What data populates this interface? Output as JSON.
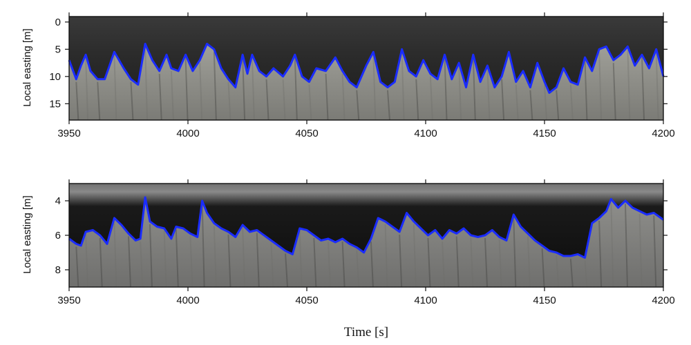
{
  "chart_data": [
    {
      "type": "line",
      "title": "",
      "ylabel": "Local easting [m]",
      "xlabel": "",
      "xlim": [
        3950,
        4200
      ],
      "ylim": [
        18,
        -1
      ],
      "y_inverted": true,
      "xticks": [
        3950,
        4000,
        4050,
        4100,
        4150,
        4200
      ],
      "yticks": [
        0,
        5,
        10,
        15
      ],
      "background": "grayscale lidar/camera timestack image",
      "line_color": "#1a2cff",
      "series": [
        {
          "x": [
            3950,
            3953,
            3955,
            3957,
            3959,
            3962,
            3965,
            3969,
            3973,
            3976,
            3979,
            3982,
            3985,
            3988,
            3991,
            3993,
            3996,
            3999,
            4002,
            4005,
            4008,
            4011,
            4014,
            4017,
            4020,
            4023,
            4025,
            4027,
            4030,
            4033,
            4036,
            4040,
            4043,
            4045,
            4048,
            4051,
            4054,
            4058,
            4062,
            4065,
            4068,
            4071,
            4075,
            4078,
            4081,
            4084,
            4087,
            4090,
            4093,
            4096,
            4099,
            4102,
            4105,
            4108,
            4111,
            4114,
            4117,
            4120,
            4123,
            4126,
            4129,
            4132,
            4135,
            4138,
            4141,
            4144,
            4147,
            4150,
            4152,
            4155,
            4158,
            4161,
            4164,
            4167,
            4170,
            4173,
            4176,
            4179,
            4182,
            4185,
            4188,
            4191,
            4194,
            4197,
            4200
          ],
          "y": [
            7,
            10.5,
            8,
            6,
            9,
            10.5,
            10.5,
            5.5,
            8.5,
            10.5,
            11.5,
            4,
            7,
            9,
            6,
            8.5,
            9,
            6,
            9,
            7,
            4,
            5,
            8.5,
            10.5,
            12,
            6,
            9.5,
            6,
            9,
            10,
            8.5,
            10,
            8,
            6,
            10,
            11,
            8.5,
            9,
            6.5,
            9,
            11,
            12,
            8,
            5.5,
            11,
            12,
            11,
            5,
            9,
            10,
            7,
            9.5,
            10.5,
            6,
            10.5,
            7.5,
            12,
            6,
            11,
            8,
            12,
            10,
            5.5,
            11,
            9,
            12,
            7.5,
            11,
            13,
            12,
            8.5,
            11,
            11.5,
            6.5,
            9,
            5,
            4.5,
            7,
            6,
            4.5,
            8,
            6,
            8.5,
            5,
            10
          ]
        }
      ]
    },
    {
      "type": "line",
      "title": "",
      "ylabel": "Local easting [m]",
      "xlabel": "Time [s]",
      "xlim": [
        3950,
        4200
      ],
      "ylim": [
        9,
        3
      ],
      "y_inverted": true,
      "xticks": [
        3950,
        4000,
        4050,
        4100,
        4150,
        4200
      ],
      "yticks": [
        4,
        6,
        8
      ],
      "background": "grayscale lidar/camera timestack image",
      "line_color": "#1a2cff",
      "series": [
        {
          "x": [
            3950,
            3953,
            3955,
            3957,
            3960,
            3963,
            3966,
            3969,
            3972,
            3975,
            3978,
            3980,
            3982,
            3984,
            3987,
            3990,
            3993,
            3995,
            3998,
            4001,
            4004,
            4006,
            4008,
            4011,
            4014,
            4017,
            4020,
            4023,
            4026,
            4029,
            4032,
            4035,
            4038,
            4041,
            4044,
            4047,
            4050,
            4053,
            4056,
            4059,
            4062,
            4065,
            4068,
            4071,
            4074,
            4077,
            4080,
            4083,
            4086,
            4089,
            4092,
            4095,
            4098,
            4101,
            4104,
            4107,
            4110,
            4113,
            4116,
            4119,
            4122,
            4125,
            4128,
            4131,
            4134,
            4137,
            4140,
            4143,
            4146,
            4149,
            4152,
            4155,
            4158,
            4161,
            4164,
            4167,
            4170,
            4173,
            4176,
            4178,
            4181,
            4184,
            4187,
            4190,
            4193,
            4196,
            4200
          ],
          "y": [
            6.2,
            6.5,
            6.6,
            5.8,
            5.7,
            6.0,
            6.5,
            5.0,
            5.4,
            5.9,
            6.3,
            6.2,
            3.8,
            5.2,
            5.5,
            5.6,
            6.2,
            5.5,
            5.6,
            5.9,
            6.1,
            4.0,
            4.7,
            5.3,
            5.6,
            5.8,
            6.1,
            5.4,
            5.8,
            5.7,
            6.0,
            6.3,
            6.6,
            6.9,
            7.1,
            5.6,
            5.7,
            6.0,
            6.3,
            6.2,
            6.4,
            6.2,
            6.5,
            6.7,
            7.0,
            6.2,
            5.0,
            5.2,
            5.5,
            5.8,
            4.7,
            5.2,
            5.6,
            6.0,
            5.7,
            6.2,
            5.7,
            5.9,
            5.6,
            6.0,
            6.1,
            6.0,
            5.7,
            6.1,
            6.3,
            4.8,
            5.5,
            5.9,
            6.3,
            6.6,
            6.9,
            7.0,
            7.2,
            7.2,
            7.1,
            7.3,
            5.3,
            5.0,
            4.6,
            3.9,
            4.4,
            4.0,
            4.4,
            4.6,
            4.8,
            4.7,
            5.1
          ]
        }
      ]
    }
  ]
}
